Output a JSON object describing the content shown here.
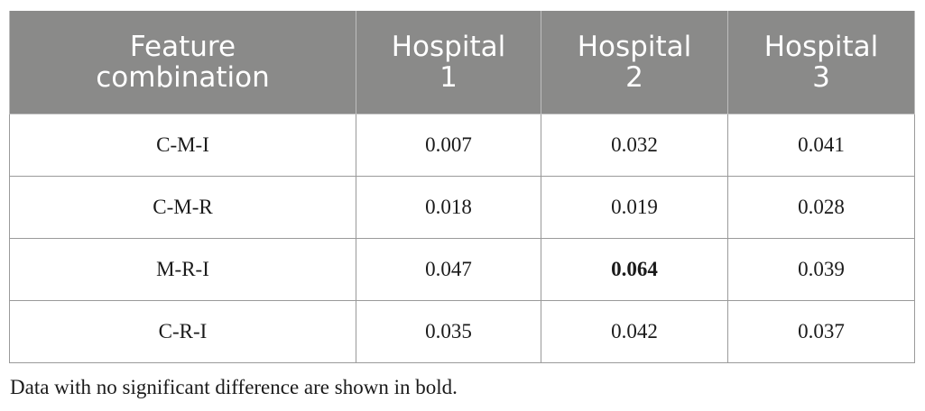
{
  "table": {
    "headers": [
      "Feature\ncombination",
      "Hospital\n1",
      "Hospital\n2",
      "Hospital\n3"
    ],
    "rows": [
      {
        "label": "C-M-I",
        "values": [
          "0.007",
          "0.032",
          "0.041"
        ]
      },
      {
        "label": "C-M-R",
        "values": [
          "0.018",
          "0.019",
          "0.028"
        ]
      },
      {
        "label": "M-R-I",
        "values": [
          "0.047",
          "0.064",
          "0.039"
        ]
      },
      {
        "label": "C-R-I",
        "values": [
          "0.035",
          "0.042",
          "0.037"
        ]
      }
    ],
    "header_background": "#8a8a89",
    "header_text_color": "#ffffff"
  },
  "footnote": "Data with no significant difference are shown in bold."
}
